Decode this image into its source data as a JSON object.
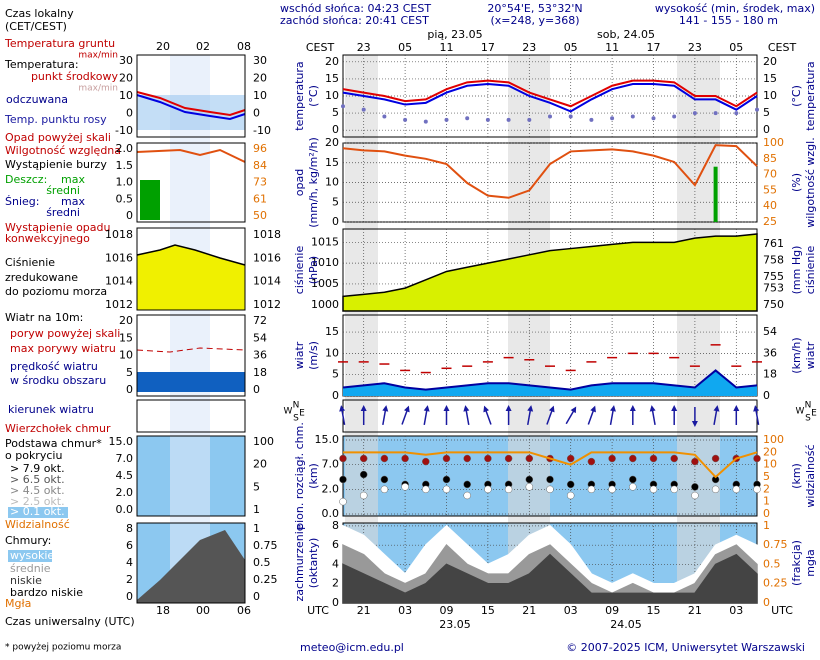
{
  "header": {
    "sunrise": "wschód słońca: 04:23 CEST",
    "sunset": "zachód słońca: 20:41 CEST",
    "coords": "20°54'E, 53°32'N",
    "grid": "(x=248, y=368)",
    "height_title": "wysokość (min, środek, max)",
    "height_values": "141 - 155 - 180 m"
  },
  "footer": {
    "note": "* powyżej poziomu morza",
    "email": "meteo@icm.edu.pl",
    "copyright": "© 2007-2025 ICM, Uniwersytet Warszawski"
  },
  "time_axis": {
    "cest_label": "CEST",
    "utc_label": "UTC",
    "cest": [
      null,
      "23",
      null,
      "05",
      null,
      "11",
      null,
      "17",
      null,
      "23",
      null,
      "05",
      null,
      "11",
      null,
      "17",
      null,
      "23",
      null,
      "05",
      null
    ],
    "utc": [
      null,
      "21",
      null,
      "03",
      null,
      "09",
      null,
      "15",
      null,
      "21",
      null,
      "03",
      null,
      "09",
      null,
      "15",
      null,
      "21",
      null,
      "03",
      null
    ],
    "top_dates": [
      "pią, 23.05",
      "sob, 24.05"
    ],
    "bottom_dates": [
      "23.05",
      "24.05"
    ]
  },
  "legend": {
    "local_time": [
      "Czas lokalny",
      "(CET/CEST)"
    ],
    "local_ticks": [
      "20",
      "02",
      "08"
    ],
    "utc_time": "Czas uniwersalny (UTC)",
    "utc_ticks": [
      "18",
      "00",
      "06"
    ],
    "temperature": [
      "Temperatura gruntu",
      "max/min",
      "Temperatura:",
      "punkt środkowy",
      "max/min",
      "odczuwana",
      "Temp. punktu rosy"
    ],
    "precipitation": [
      "Opad powyżej skali",
      "Wilgotność względna",
      "Wystąpienie burzy",
      "Deszcz:",
      "max",
      "średni",
      "Śnieg:",
      "max",
      "średni",
      "Wystąpienie opadu",
      "konwekcyjnego"
    ],
    "pressure": [
      "Ciśnienie",
      "zredukowane",
      "do poziomu morza"
    ],
    "wind": [
      "Wiatr na 10m:",
      "poryw powyżej skali",
      "max porywy wiatru",
      "prędkość wiatru",
      "w środku obszaru"
    ],
    "direction": "kierunek wiatru",
    "cloud_base": [
      "Wierzchołek chmur",
      "Podstawa chmur*",
      "o pokryciu",
      "> 7.9 okt.",
      "> 6.5 okt.",
      "> 4.5 okt.",
      "> 2.5 okt.",
      "> 0.1 okt.",
      "Widzialność"
    ],
    "clouds": [
      "Chmury:",
      "wysokie",
      "średnie",
      "niskie",
      "bardzo niskie",
      "Mgła"
    ],
    "mini_ticks": [
      {
        "left": [
          "30",
          "20",
          "10",
          "0",
          "-10"
        ],
        "right": [
          "30",
          "20",
          "10",
          "0",
          "-10"
        ]
      },
      {
        "left": [
          "2.0",
          "1.5",
          "1.0",
          "0.5",
          "0"
        ],
        "right": [
          "96",
          "84",
          "73",
          "61",
          "50"
        ]
      },
      {
        "left": [
          "1018",
          "1016",
          "1014",
          "1012"
        ],
        "right": [
          "1018",
          "1016",
          "1014",
          "1012"
        ]
      },
      {
        "left": [
          "20",
          "15",
          "10",
          "5",
          "0"
        ],
        "right": [
          "72",
          "54",
          "36",
          "18",
          "0"
        ]
      },
      {
        "left": [],
        "right": []
      },
      {
        "left": [
          "15.0",
          "7.0",
          "4.5",
          "2.0",
          "0.0"
        ],
        "right": [
          "100",
          "20",
          "5",
          "1"
        ]
      },
      {
        "left": [
          "8",
          "6",
          "4",
          "2",
          "0"
        ],
        "right": [
          "1",
          "0.75",
          "0.5",
          "0.25",
          "0"
        ]
      }
    ],
    "compass": [
      "N",
      "W",
      "E",
      "S"
    ]
  },
  "chart_data": [
    {
      "type": "line",
      "ylabel": [
        "temperatura",
        "(°C)"
      ],
      "y2label": [
        "(°C)",
        "temperatura"
      ],
      "ylim": [
        -2,
        22
      ],
      "yticks": [
        0,
        5,
        10,
        15,
        20
      ],
      "y2ticks": [
        0,
        5,
        10,
        15,
        20
      ],
      "grid": true,
      "series": [
        {
          "name": "punkt środkowy",
          "color": "#e00000",
          "values": [
            12,
            11,
            10,
            8.5,
            9,
            12,
            14,
            14.5,
            14,
            11,
            9,
            7,
            10,
            13,
            14.5,
            14.5,
            14,
            10,
            10,
            7,
            11
          ]
        },
        {
          "name": "odczuwana",
          "color": "#0000e0",
          "values": [
            11,
            10,
            9,
            7.5,
            8,
            11,
            13,
            13.5,
            13,
            10,
            8,
            5.5,
            9,
            12,
            13.5,
            13.5,
            13,
            9,
            9,
            6,
            10
          ]
        },
        {
          "name": "Temp. punktu rosy",
          "color": "#7070c0",
          "marker": "dot",
          "values": [
            7,
            6,
            4,
            3,
            2.5,
            3,
            3.5,
            3,
            3,
            3,
            4,
            4,
            3,
            3.5,
            4,
            3.5,
            4,
            5,
            5,
            5,
            6
          ]
        }
      ]
    },
    {
      "type": "bar",
      "ylabel": [
        "opad",
        "(mm/h, kg/m²/h)"
      ],
      "y2label": [
        "(%)",
        "wilgotność wzgl."
      ],
      "ylim": [
        0,
        20
      ],
      "yticks": [
        0,
        5,
        10,
        15,
        20
      ],
      "y2lim": [
        25,
        100
      ],
      "y2ticks": [
        25,
        40,
        55,
        70,
        85,
        100
      ],
      "grid": true,
      "color": "#00a000",
      "values": [
        0,
        0,
        0,
        0,
        0,
        0,
        0,
        0,
        0,
        0,
        0,
        0,
        0,
        0,
        0,
        0,
        0,
        0,
        14,
        0,
        0
      ],
      "series": [
        {
          "name": "Wilgotność względna",
          "color": "#e05010",
          "axis": "y2",
          "values": [
            95,
            93,
            92,
            88,
            85,
            80,
            62,
            50,
            48,
            55,
            80,
            92,
            93,
            94,
            92,
            88,
            82,
            60,
            98,
            97,
            78
          ]
        }
      ]
    },
    {
      "type": "area",
      "ylabel": [
        "ciśnienie",
        "(hPa)"
      ],
      "y2label": [
        "(mm Hg)",
        "ciśnienie"
      ],
      "ylim": [
        998.5,
        1018.2
      ],
      "yticks": [
        1000,
        1005,
        1010,
        1015
      ],
      "y2lim": [
        748.9,
        763.7
      ],
      "y2ticks": [
        750,
        753,
        755,
        758,
        761
      ],
      "grid": true,
      "series": [
        {
          "name": "Ciśnienie",
          "color": "#000000",
          "fill": "#d8f000",
          "values": [
            1002,
            1002.5,
            1003,
            1004,
            1006,
            1008,
            1009,
            1010,
            1011,
            1012,
            1013,
            1013.5,
            1014,
            1014.5,
            1015,
            1015,
            1015,
            1016,
            1016.5,
            1016.5,
            1017
          ]
        }
      ]
    },
    {
      "type": "line",
      "ylabel": [
        "wiatr",
        "(m/s)"
      ],
      "y2label": [
        "(km/h)",
        "wiatr"
      ],
      "ylim": [
        0,
        19
      ],
      "yticks": [
        0,
        5,
        10,
        15
      ],
      "y2lim": [
        0,
        68.4
      ],
      "y2ticks": [
        0,
        18,
        36,
        54
      ],
      "grid": true,
      "series": [
        {
          "name": "max porywy wiatru",
          "color": "#c00000",
          "marker": "dash",
          "values": [
            8,
            8,
            7.5,
            6,
            5.5,
            6.5,
            7,
            8,
            9,
            8.5,
            7,
            6,
            8,
            9,
            10,
            10,
            9,
            7,
            12,
            7,
            8
          ]
        },
        {
          "name": "prędkość wiatru",
          "color": "#0000a0",
          "fill": "#10a8f0",
          "values": [
            2,
            2.5,
            3,
            2,
            1.5,
            2,
            2.5,
            3,
            3,
            2.5,
            2,
            1.5,
            2.5,
            3,
            3,
            3,
            2.5,
            2,
            6,
            2,
            2.5
          ]
        }
      ]
    },
    {
      "type": "arrows",
      "color": "#1a1aa0",
      "values": [
        350,
        0,
        10,
        20,
        10,
        0,
        350,
        340,
        0,
        10,
        20,
        30,
        20,
        10,
        0,
        350,
        0,
        180,
        10,
        0,
        350
      ]
    },
    {
      "type": "scatter",
      "ylabel": [
        "pion. rozciągł. chm.",
        "(km)"
      ],
      "y2label": [
        "(km)",
        "widzialność"
      ],
      "ylim": [
        0,
        15
      ],
      "yticks": [
        {
          "value": 0,
          "label": "0.0"
        },
        {
          "value": 2,
          "label": "2.0"
        },
        {
          "value": 7,
          "label": "7.0"
        },
        {
          "value": 15,
          "label": "15.0"
        }
      ],
      "y2lim": [
        0,
        100
      ],
      "y2ticks": [
        0,
        1,
        2,
        5,
        10,
        20,
        100
      ],
      "grid": true,
      "series": [
        {
          "name": "Wierzchołek chmur",
          "color": "#a01010",
          "values": [
            9,
            9,
            9,
            9,
            8,
            9,
            9,
            9,
            9,
            9,
            9,
            9,
            8,
            9,
            9,
            9,
            9,
            8,
            9,
            9,
            9
          ]
        },
        {
          "name": "> 7.9 okt.",
          "color": "#000000",
          "values": [
            4,
            5,
            4,
            3,
            3,
            4,
            3,
            3,
            3,
            4,
            4,
            3,
            3,
            3,
            4,
            3,
            3,
            2.5,
            4,
            3,
            3
          ]
        },
        {
          "name": "> 0.1 okt.",
          "color": "#ffffff",
          "values": [
            1,
            1.5,
            2,
            2.5,
            2,
            2,
            1.5,
            2,
            2,
            2.5,
            2,
            1.5,
            2,
            2,
            2.5,
            2,
            2,
            1.5,
            2,
            2,
            2
          ]
        },
        {
          "name": "Widzialność",
          "color": "#f09000",
          "axis": "y2",
          "values": [
            20,
            20,
            20,
            20,
            18,
            20,
            20,
            20,
            20,
            20,
            15,
            10,
            20,
            20,
            20,
            20,
            20,
            18,
            5,
            15,
            20
          ]
        }
      ]
    },
    {
      "type": "area",
      "ylabel": [
        "zachmurzenie",
        "(oktanty)"
      ],
      "y2label": [
        "(frakcja)",
        "mgła"
      ],
      "ylim": [
        0,
        8.3
      ],
      "yticks": [
        0,
        2,
        4,
        6,
        8
      ],
      "y2lim": [
        0,
        1.0375
      ],
      "y2ticks": [
        0,
        0.25,
        0.5,
        0.75,
        1
      ],
      "grid": true,
      "series": [
        {
          "name": "wysokie",
          "color": "#ffffff",
          "fill": "#ffffff",
          "values": [
            8,
            7,
            5,
            3,
            6,
            8,
            6,
            4,
            5,
            7,
            8,
            6,
            3,
            2,
            3,
            2,
            2,
            3,
            6,
            7,
            6
          ]
        },
        {
          "name": "średnie",
          "color": "#999999",
          "fill": "#999999",
          "values": [
            6,
            5,
            3,
            2,
            3,
            6,
            4,
            3,
            3,
            5,
            6,
            4,
            2,
            1,
            2,
            1,
            1,
            2,
            5,
            6,
            4
          ]
        },
        {
          "name": "niskie",
          "color": "#444444",
          "fill": "#444444",
          "values": [
            4,
            3,
            2,
            1,
            2,
            4,
            3,
            2,
            2,
            3,
            5,
            3,
            1,
            1,
            1,
            1,
            1,
            1,
            4,
            5,
            3
          ]
        }
      ]
    }
  ]
}
